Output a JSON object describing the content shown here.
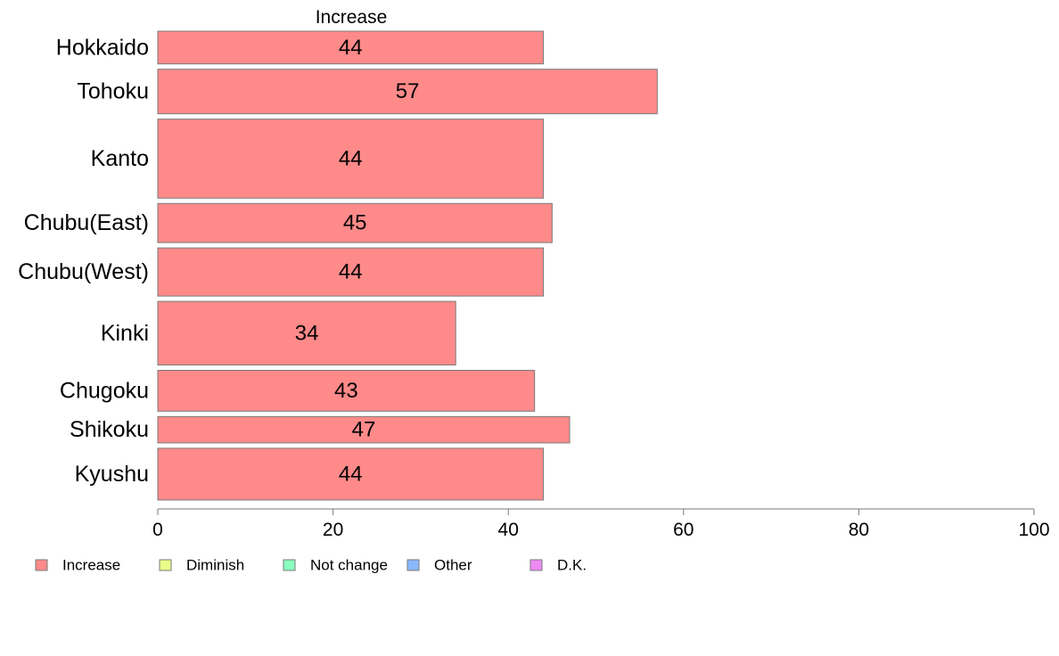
{
  "chart_data": {
    "type": "bar",
    "orientation": "horizontal",
    "series_heading": "Increase",
    "categories": [
      "Hokkaido",
      "Tohoku",
      "Kanto",
      "Chubu(East)",
      "Chubu(West)",
      "Kinki",
      "Chugoku",
      "Shikoku",
      "Kyushu"
    ],
    "series": [
      {
        "name": "Increase",
        "values": [
          44,
          57,
          44,
          45,
          44,
          34,
          43,
          47,
          44
        ]
      }
    ],
    "value_labels": [
      "44",
      "57",
      "44",
      "45",
      "44",
      "34",
      "43",
      "47",
      "44"
    ],
    "bar_weights": [
      0.36,
      0.49,
      0.87,
      0.43,
      0.53,
      0.7,
      0.45,
      0.29,
      0.57
    ],
    "xlim": [
      0,
      100
    ],
    "xticks": [
      0,
      20,
      40,
      60,
      80,
      100
    ],
    "xtick_labels": [
      "0",
      "20",
      "40",
      "60",
      "80",
      "100"
    ],
    "title": "",
    "xlabel": "",
    "ylabel": "",
    "grid": false,
    "legend_position": "bottom-left",
    "legend": [
      {
        "label": "Increase",
        "color": "#FF8A8A"
      },
      {
        "label": "Diminish",
        "color": "#EAFF8A"
      },
      {
        "label": "Not change",
        "color": "#8AFFC0"
      },
      {
        "label": "Other",
        "color": "#8AB8FF"
      },
      {
        "label": "D.K.",
        "color": "#F08AF5"
      }
    ],
    "bar_color": "#FF8A8A"
  }
}
